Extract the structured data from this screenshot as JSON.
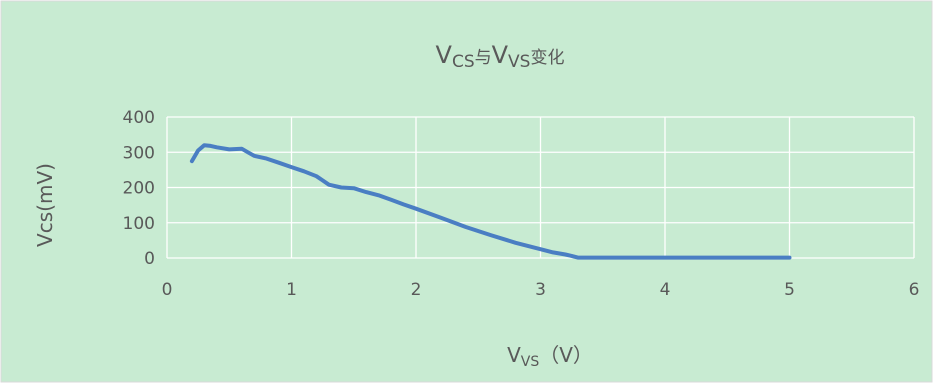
{
  "chart_data": {
    "type": "line",
    "title": {
      "main1": "V",
      "sub1": "CS",
      "mid": "与",
      "main2": "V",
      "sub2": "VS",
      "tail": "变化"
    },
    "xlabel": {
      "main": "V",
      "sub": "VS",
      "unit": "（V）"
    },
    "ylabel": "Vcs(mV)",
    "xlim": [
      0,
      6
    ],
    "ylim": [
      0,
      400
    ],
    "x_ticks": [
      "0",
      "1",
      "2",
      "3",
      "4",
      "5",
      "6"
    ],
    "y_ticks": [
      "0",
      "100",
      "200",
      "300",
      "400"
    ],
    "grid": true,
    "legend": "none",
    "series": [
      {
        "x": [
          0.2,
          0.25,
          0.3,
          0.35,
          0.4,
          0.5,
          0.6,
          0.65,
          0.7,
          0.8,
          0.9,
          1.0,
          1.1,
          1.2,
          1.25,
          1.3,
          1.4,
          1.5,
          1.6,
          1.7,
          1.8,
          1.9,
          2.0,
          2.2,
          2.4,
          2.6,
          2.8,
          3.0,
          3.1,
          3.2,
          3.25,
          3.3,
          3.5,
          4.0,
          4.5,
          5.0
        ],
        "y": [
          275,
          305,
          320,
          318,
          314,
          308,
          310,
          300,
          290,
          282,
          270,
          258,
          246,
          232,
          220,
          208,
          200,
          198,
          187,
          178,
          165,
          152,
          140,
          114,
          88,
          65,
          43,
          25,
          16,
          10,
          6,
          1,
          1,
          1,
          1,
          1
        ]
      }
    ],
    "colors": {
      "background": "#c8ebd2",
      "line": "#4a7ec3",
      "grid": "#ffffff",
      "text": "#595959"
    }
  }
}
